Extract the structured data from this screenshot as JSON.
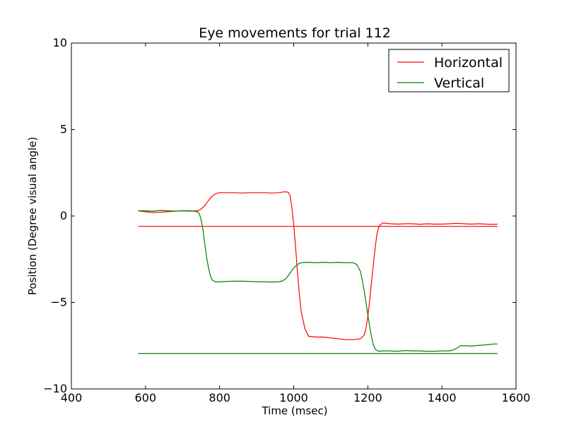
{
  "chart_data": {
    "type": "line",
    "title": "Eye movements for trial 112",
    "xlabel": "Time (msec)",
    "ylabel": "Position (Degree visual angle)",
    "xlim": [
      400,
      1600
    ],
    "ylim": [
      -10,
      10
    ],
    "xticks": [
      400,
      600,
      800,
      1000,
      1200,
      1400,
      1600
    ],
    "yticks": [
      -10,
      -5,
      0,
      5,
      10
    ],
    "xtick_labels": [
      "400",
      "600",
      "800",
      "1000",
      "1200",
      "1400",
      "1600"
    ],
    "ytick_labels": [
      "−10",
      "−5",
      "0",
      "5",
      "10"
    ],
    "grid": false,
    "legend": "top-right",
    "series": [
      {
        "name": "Horizontal",
        "color": "#ff0000",
        "x": [
          580,
          600,
          620,
          640,
          660,
          680,
          700,
          720,
          740,
          750,
          760,
          770,
          780,
          790,
          800,
          820,
          840,
          860,
          880,
          900,
          920,
          940,
          960,
          975,
          985,
          990,
          995,
          1000,
          1005,
          1010,
          1015,
          1020,
          1030,
          1040,
          1060,
          1080,
          1100,
          1120,
          1140,
          1160,
          1180,
          1190,
          1195,
          1200,
          1205,
          1210,
          1215,
          1220,
          1225,
          1230,
          1240,
          1260,
          1280,
          1300,
          1320,
          1340,
          1360,
          1380,
          1400,
          1420,
          1440,
          1460,
          1480,
          1500,
          1520,
          1540,
          1550
        ],
        "y": [
          0.3,
          0.25,
          0.2,
          0.22,
          0.25,
          0.28,
          0.3,
          0.28,
          0.3,
          0.4,
          0.6,
          0.9,
          1.15,
          1.3,
          1.35,
          1.35,
          1.35,
          1.33,
          1.35,
          1.35,
          1.35,
          1.33,
          1.35,
          1.4,
          1.38,
          1.2,
          0.5,
          -0.5,
          -1.8,
          -3.2,
          -4.5,
          -5.5,
          -6.5,
          -6.95,
          -7.0,
          -7.0,
          -7.05,
          -7.1,
          -7.15,
          -7.15,
          -7.1,
          -6.9,
          -6.5,
          -5.8,
          -4.9,
          -3.8,
          -2.8,
          -1.8,
          -1.0,
          -0.6,
          -0.4,
          -0.45,
          -0.47,
          -0.45,
          -0.45,
          -0.48,
          -0.45,
          -0.47,
          -0.47,
          -0.45,
          -0.42,
          -0.45,
          -0.47,
          -0.45,
          -0.47,
          -0.48,
          -0.47
        ]
      },
      {
        "name": "",
        "color": "#ff0000",
        "x": [
          580,
          1550
        ],
        "y": [
          -0.6,
          -0.6
        ]
      },
      {
        "name": "Vertical",
        "color": "#008000",
        "x": [
          580,
          600,
          620,
          640,
          660,
          680,
          700,
          720,
          740,
          745,
          750,
          755,
          760,
          765,
          770,
          775,
          780,
          790,
          800,
          820,
          840,
          860,
          880,
          900,
          920,
          940,
          960,
          970,
          980,
          990,
          1000,
          1010,
          1020,
          1040,
          1060,
          1080,
          1100,
          1120,
          1140,
          1160,
          1170,
          1180,
          1185,
          1190,
          1195,
          1200,
          1205,
          1210,
          1215,
          1220,
          1225,
          1230,
          1240,
          1260,
          1280,
          1300,
          1320,
          1340,
          1360,
          1380,
          1400,
          1410,
          1420,
          1430,
          1440,
          1450,
          1460,
          1480,
          1500,
          1520,
          1540,
          1550
        ],
        "y": [
          0.3,
          0.3,
          0.28,
          0.32,
          0.3,
          0.28,
          0.3,
          0.3,
          0.25,
          0.15,
          -0.2,
          -0.8,
          -1.6,
          -2.4,
          -3.0,
          -3.45,
          -3.7,
          -3.82,
          -3.8,
          -3.78,
          -3.77,
          -3.77,
          -3.78,
          -3.8,
          -3.8,
          -3.82,
          -3.8,
          -3.75,
          -3.6,
          -3.3,
          -3.0,
          -2.8,
          -2.7,
          -2.68,
          -2.7,
          -2.68,
          -2.7,
          -2.68,
          -2.7,
          -2.7,
          -2.8,
          -3.2,
          -3.7,
          -4.3,
          -5.0,
          -5.7,
          -6.4,
          -7.0,
          -7.45,
          -7.7,
          -7.78,
          -7.82,
          -7.8,
          -7.8,
          -7.82,
          -7.78,
          -7.8,
          -7.8,
          -7.82,
          -7.82,
          -7.8,
          -7.8,
          -7.8,
          -7.75,
          -7.65,
          -7.5,
          -7.5,
          -7.52,
          -7.48,
          -7.45,
          -7.4,
          -7.4
        ]
      },
      {
        "name": "",
        "color": "#008000",
        "x": [
          580,
          1550
        ],
        "y": [
          -7.95,
          -7.95
        ]
      }
    ]
  }
}
